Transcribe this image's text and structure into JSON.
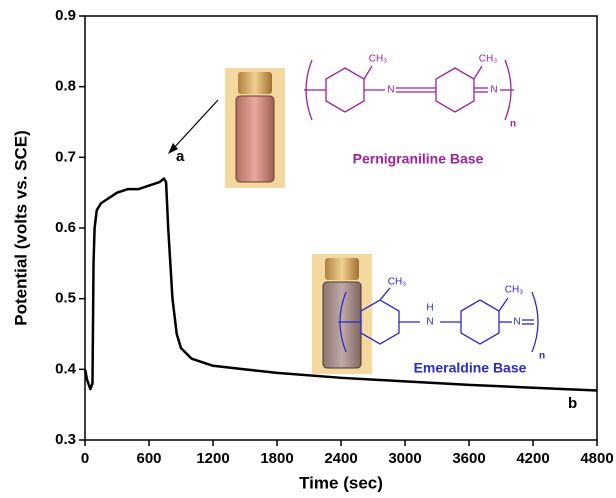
{
  "chart_data": {
    "type": "line",
    "xlabel": "Time (sec)",
    "ylabel": "Potential (volts vs. SCE)",
    "x": [
      0,
      20,
      50,
      70,
      80,
      90,
      110,
      150,
      200,
      300,
      400,
      500,
      600,
      700,
      740,
      760,
      780,
      820,
      860,
      900,
      1000,
      1200,
      1500,
      1800,
      2400,
      3000,
      3600,
      4200,
      4800
    ],
    "series": [
      {
        "color": "#000000",
        "values": [
          0.4,
          0.385,
          0.372,
          0.38,
          0.55,
          0.6,
          0.625,
          0.635,
          0.64,
          0.65,
          0.655,
          0.655,
          0.66,
          0.665,
          0.67,
          0.665,
          0.6,
          0.5,
          0.45,
          0.43,
          0.415,
          0.405,
          0.4,
          0.395,
          0.388,
          0.383,
          0.378,
          0.374,
          0.37
        ]
      }
    ],
    "xlim": [
      0,
      4800
    ],
    "xticks": [
      0,
      600,
      1200,
      1800,
      2400,
      3000,
      3600,
      4200,
      4800
    ],
    "ylim": [
      0.3,
      0.9
    ],
    "yticks": [
      0.3,
      0.4,
      0.5,
      0.6,
      0.7,
      0.8,
      0.9
    ],
    "annotations": [
      "a",
      "b"
    ],
    "pernigraniline": {
      "name": "Pernigraniline Base",
      "color": "#a020a0",
      "labels": [
        "CH₃",
        "CH₃",
        "N",
        "N",
        "n"
      ]
    },
    "emeraldine": {
      "name": "Emeraldine Base",
      "color": "#2a2ad0",
      "labels": [
        "CH₃",
        "H",
        "N",
        "CH₃",
        "N",
        "n"
      ]
    }
  }
}
